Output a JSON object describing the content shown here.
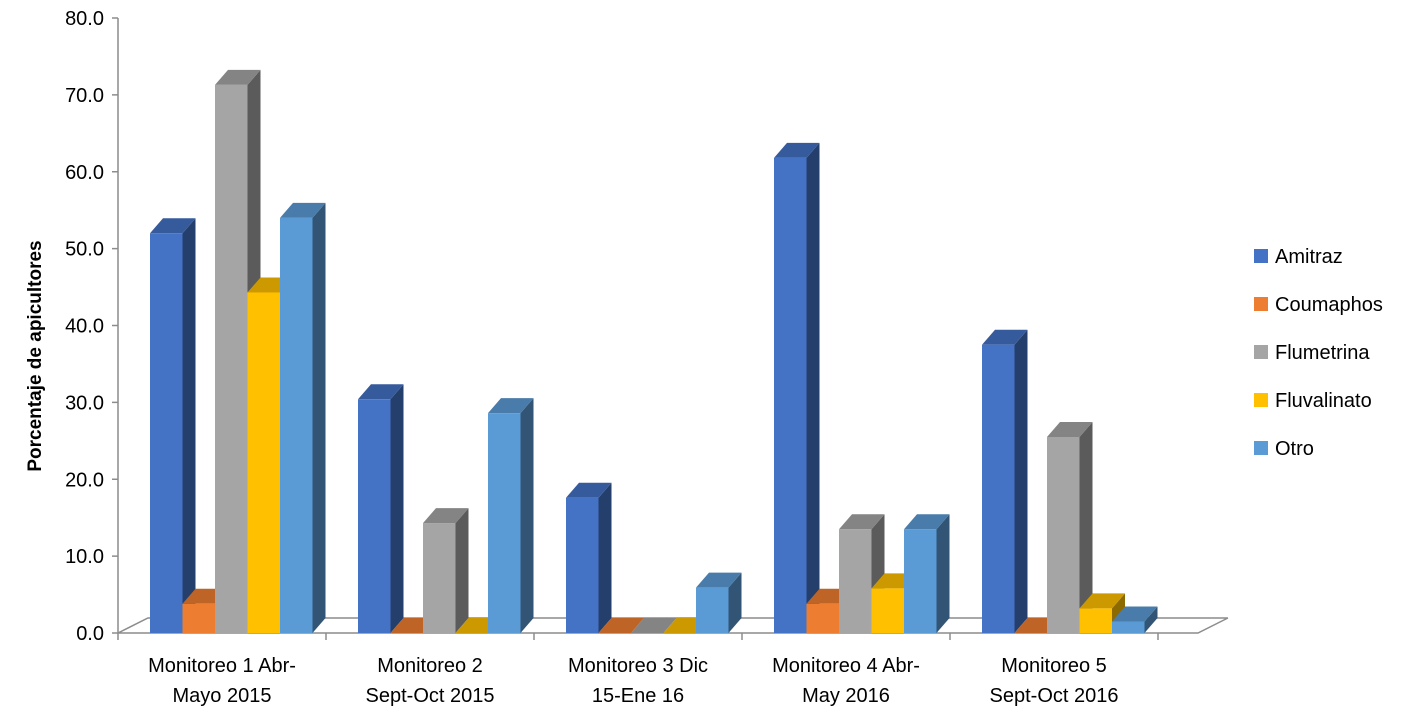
{
  "chart_data": {
    "type": "bar",
    "title": "",
    "xlabel": "",
    "ylabel": "Porcentaje de apicultores",
    "ylim": [
      0,
      80
    ],
    "yticks": [
      "0.0",
      "10.0",
      "20.0",
      "30.0",
      "40.0",
      "50.0",
      "60.0",
      "70.0",
      "80.0"
    ],
    "grid": false,
    "legend_position": "right",
    "categories": [
      [
        "Monitoreo 1 Abr-",
        "Mayo 2015"
      ],
      [
        "Monitoreo 2",
        "Sept-Oct 2015"
      ],
      [
        "Monitoreo 3 Dic",
        "15-Ene 16"
      ],
      [
        "Monitoreo 4 Abr-",
        "May 2016"
      ],
      [
        "Monitoreo 5",
        "Sept-Oct 2016"
      ]
    ],
    "series": [
      {
        "name": "Amitraz",
        "color": "#4472C4",
        "values": [
          52.0,
          30.4,
          17.6,
          61.8,
          37.5
        ]
      },
      {
        "name": "Coumaphos",
        "color": "#ED7D31",
        "values": [
          3.8,
          0.0,
          0.0,
          3.8,
          0.0
        ]
      },
      {
        "name": "Flumetrina",
        "color": "#A5A5A5",
        "values": [
          71.3,
          14.3,
          0.0,
          13.5,
          25.5
        ]
      },
      {
        "name": "Fluvalinato",
        "color": "#FFC000",
        "values": [
          44.3,
          0.0,
          0.0,
          5.8,
          3.2
        ]
      },
      {
        "name": "Otro",
        "color": "#5B9BD5",
        "values": [
          54.0,
          28.6,
          5.9,
          13.5,
          1.5
        ]
      }
    ]
  }
}
